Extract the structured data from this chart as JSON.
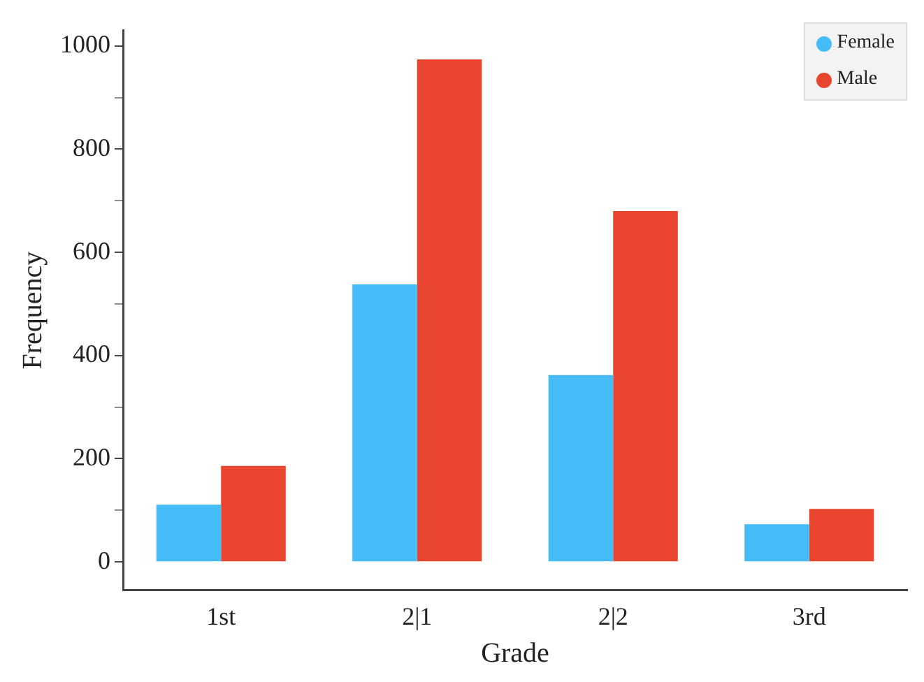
{
  "chart_data": {
    "type": "bar",
    "xlabel": "Grade",
    "ylabel": "Frequency",
    "categories": [
      "1st",
      "2|1",
      "2|2",
      "3rd"
    ],
    "series": [
      {
        "name": "Female",
        "color": "#45bcf7",
        "values": [
          111,
          538,
          362,
          73
        ]
      },
      {
        "name": "Male",
        "color": "#e9452f",
        "values": [
          186,
          974,
          680,
          103
        ]
      }
    ],
    "ylim": [
      -55,
      1030
    ],
    "yticks": [
      0,
      {
        "value": 100,
        "label": null
      },
      200,
      {
        "value": 300,
        "label": null
      },
      400,
      {
        "value": 500,
        "label": null
      },
      600,
      {
        "value": 700,
        "label": null
      },
      800,
      {
        "value": 900,
        "label": null
      },
      1000
    ],
    "grid": false,
    "legend": "top right"
  }
}
